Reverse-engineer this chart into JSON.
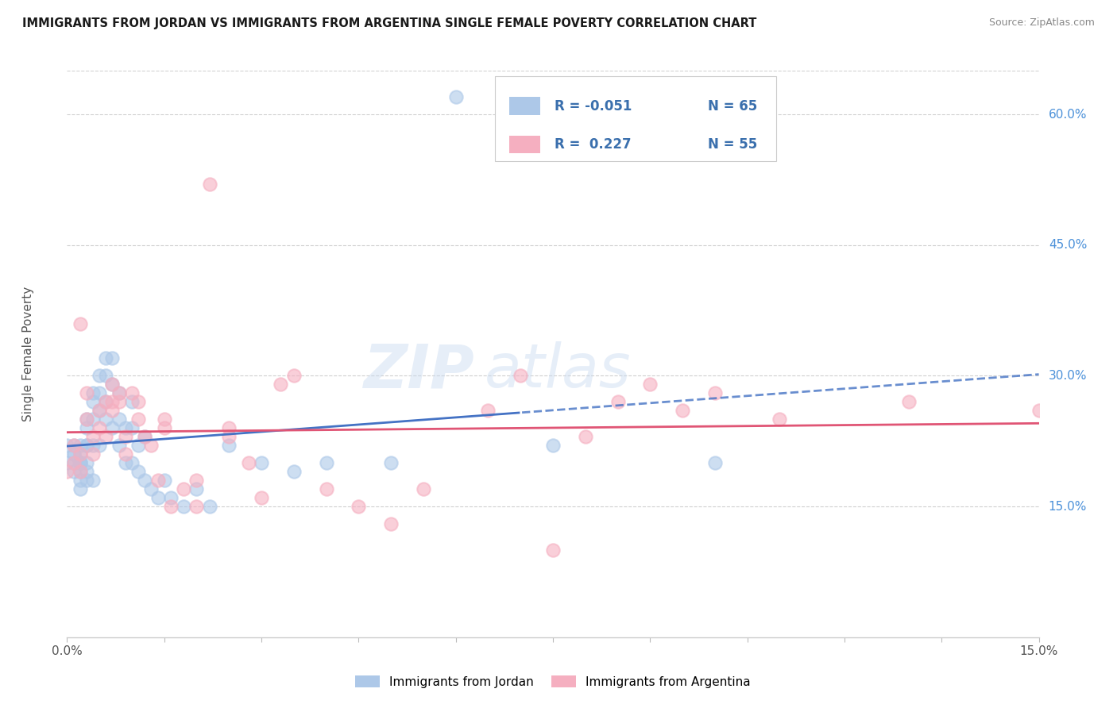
{
  "title": "IMMIGRANTS FROM JORDAN VS IMMIGRANTS FROM ARGENTINA SINGLE FEMALE POVERTY CORRELATION CHART",
  "source": "Source: ZipAtlas.com",
  "ylabel": "Single Female Poverty",
  "right_yticks": [
    0.15,
    0.3,
    0.45,
    0.6
  ],
  "right_ytick_labels": [
    "15.0%",
    "30.0%",
    "45.0%",
    "60.0%"
  ],
  "jordan_color": "#adc8e8",
  "argentina_color": "#f5afc0",
  "jordan_line_color": "#4472c4",
  "argentina_line_color": "#e05575",
  "jordan_R": -0.051,
  "jordan_N": 65,
  "argentina_R": 0.227,
  "argentina_N": 55,
  "jordan_label": "Immigrants from Jordan",
  "argentina_label": "Immigrants from Argentina",
  "watermark_zip": "ZIP",
  "watermark_atlas": "atlas",
  "background_color": "#ffffff",
  "grid_color": "#d0d0d0",
  "xmin": 0.0,
  "xmax": 0.15,
  "ymin": 0.0,
  "ymax": 0.65,
  "jordan_x": [
    0.0,
    0.0,
    0.001,
    0.001,
    0.001,
    0.001,
    0.001,
    0.002,
    0.002,
    0.002,
    0.002,
    0.002,
    0.002,
    0.002,
    0.002,
    0.003,
    0.003,
    0.003,
    0.003,
    0.003,
    0.003,
    0.003,
    0.004,
    0.004,
    0.004,
    0.004,
    0.004,
    0.005,
    0.005,
    0.005,
    0.005,
    0.006,
    0.006,
    0.006,
    0.006,
    0.007,
    0.007,
    0.007,
    0.008,
    0.008,
    0.008,
    0.009,
    0.009,
    0.01,
    0.01,
    0.01,
    0.011,
    0.011,
    0.012,
    0.012,
    0.013,
    0.014,
    0.015,
    0.016,
    0.018,
    0.02,
    0.022,
    0.025,
    0.03,
    0.035,
    0.04,
    0.05,
    0.06,
    0.075,
    0.1
  ],
  "jordan_y": [
    0.22,
    0.2,
    0.21,
    0.2,
    0.19,
    0.21,
    0.22,
    0.2,
    0.19,
    0.22,
    0.21,
    0.2,
    0.18,
    0.2,
    0.17,
    0.25,
    0.24,
    0.22,
    0.2,
    0.19,
    0.18,
    0.22,
    0.28,
    0.27,
    0.25,
    0.22,
    0.18,
    0.3,
    0.28,
    0.26,
    0.22,
    0.32,
    0.3,
    0.27,
    0.25,
    0.32,
    0.29,
    0.24,
    0.28,
    0.25,
    0.22,
    0.24,
    0.2,
    0.27,
    0.24,
    0.2,
    0.22,
    0.19,
    0.23,
    0.18,
    0.17,
    0.16,
    0.18,
    0.16,
    0.15,
    0.17,
    0.15,
    0.22,
    0.2,
    0.19,
    0.2,
    0.2,
    0.62,
    0.22,
    0.2
  ],
  "argentina_x": [
    0.0,
    0.001,
    0.001,
    0.002,
    0.002,
    0.002,
    0.003,
    0.003,
    0.004,
    0.004,
    0.005,
    0.005,
    0.006,
    0.006,
    0.007,
    0.007,
    0.007,
    0.008,
    0.008,
    0.009,
    0.009,
    0.01,
    0.011,
    0.011,
    0.012,
    0.013,
    0.014,
    0.015,
    0.015,
    0.016,
    0.018,
    0.02,
    0.02,
    0.022,
    0.025,
    0.025,
    0.028,
    0.03,
    0.033,
    0.035,
    0.04,
    0.045,
    0.05,
    0.055,
    0.065,
    0.07,
    0.075,
    0.08,
    0.085,
    0.09,
    0.095,
    0.1,
    0.11,
    0.13,
    0.15
  ],
  "argentina_y": [
    0.19,
    0.2,
    0.22,
    0.21,
    0.19,
    0.36,
    0.25,
    0.28,
    0.21,
    0.23,
    0.26,
    0.24,
    0.27,
    0.23,
    0.29,
    0.27,
    0.26,
    0.27,
    0.28,
    0.23,
    0.21,
    0.28,
    0.27,
    0.25,
    0.23,
    0.22,
    0.18,
    0.24,
    0.25,
    0.15,
    0.17,
    0.18,
    0.15,
    0.52,
    0.24,
    0.23,
    0.2,
    0.16,
    0.29,
    0.3,
    0.17,
    0.15,
    0.13,
    0.17,
    0.26,
    0.3,
    0.1,
    0.23,
    0.27,
    0.29,
    0.26,
    0.28,
    0.25,
    0.27,
    0.26
  ],
  "legend_R1_text": "R = -0.051",
  "legend_N1_text": "N = 65",
  "legend_R2_text": "R =  0.227",
  "legend_N2_text": "N = 55"
}
